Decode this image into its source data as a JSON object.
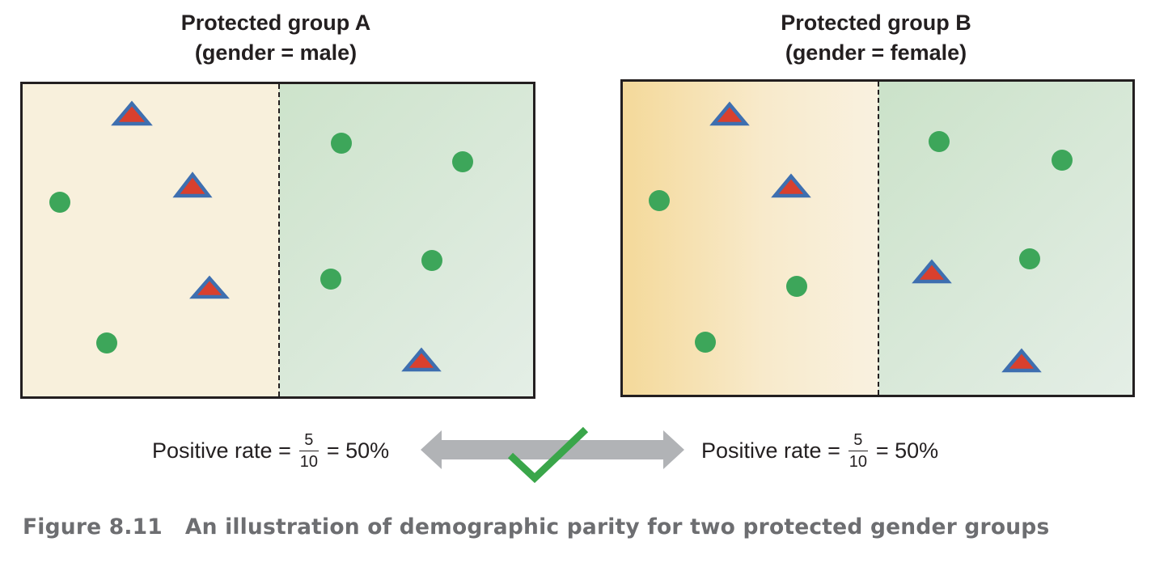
{
  "groups": [
    {
      "title_line1": "Protected group A",
      "title_line2": "(gender = male)",
      "triangles": 4,
      "circles": 6,
      "positive_rate": {
        "label": "Positive rate =",
        "numerator": "5",
        "denominator": "10",
        "result": "= 50%"
      }
    },
    {
      "title_line1": "Protected group B",
      "title_line2": "(gender = female)",
      "triangles": 4,
      "circles": 6,
      "positive_rate": {
        "label": "Positive rate =",
        "numerator": "5",
        "denominator": "10",
        "result": "= 50%"
      }
    }
  ],
  "comparison": {
    "arrow_icon": "double-headed-arrow",
    "check_icon": "checkmark-icon"
  },
  "caption": {
    "number": "Figure 8.11",
    "text": "An illustration of demographic parity for two protected gender groups"
  },
  "colors": {
    "circle": "#3da65a",
    "triangle_fill": "#d9402e",
    "triangle_stroke": "#3e6fb0",
    "negative_region": "#f8f0dc",
    "negative_region_b_left": "#f4d99a",
    "positive_region": "#d2e6d0",
    "arrow": "#b1b3b6",
    "check": "#3aa64a",
    "caption": "#6d6e71"
  }
}
